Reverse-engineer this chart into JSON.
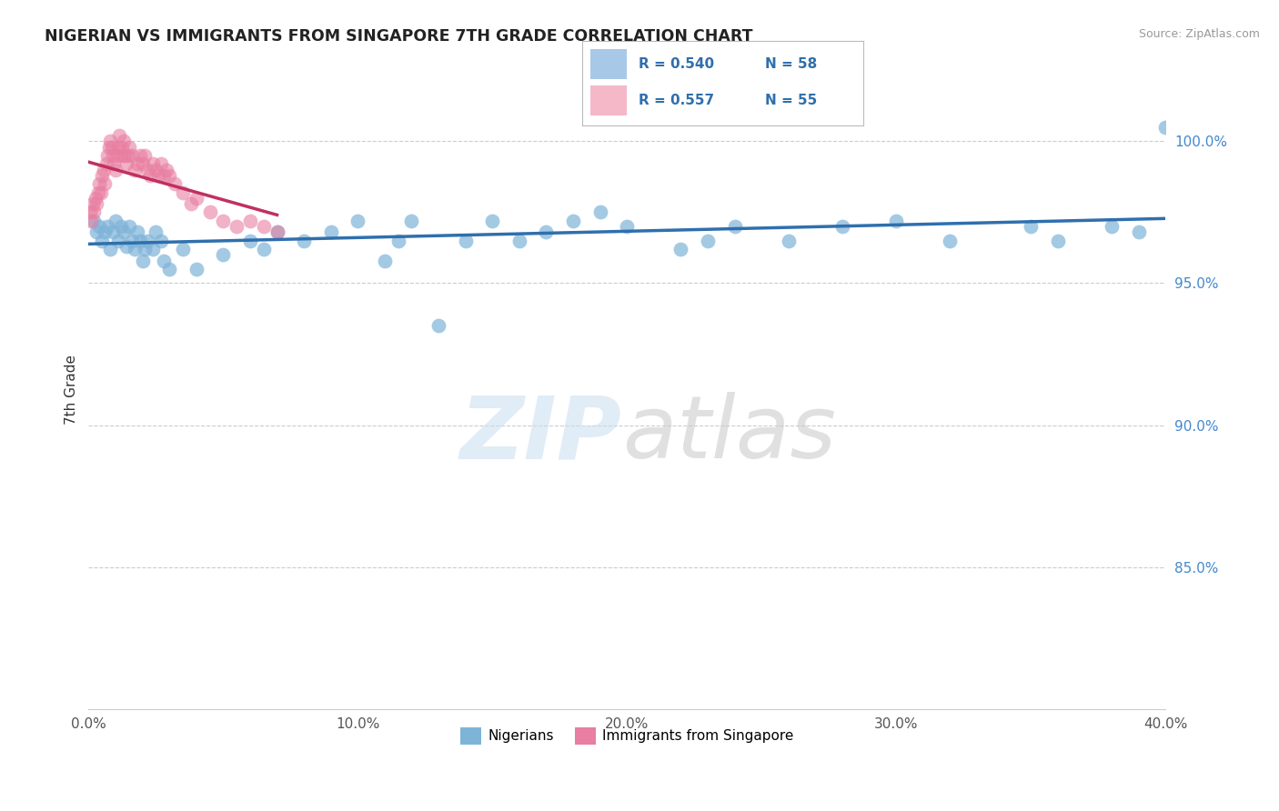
{
  "title": "NIGERIAN VS IMMIGRANTS FROM SINGAPORE 7TH GRADE CORRELATION CHART",
  "source": "Source: ZipAtlas.com",
  "xlabel_vals": [
    0.0,
    10.0,
    20.0,
    30.0,
    40.0
  ],
  "ylabel_vals": [
    100.0,
    95.0,
    90.0,
    85.0
  ],
  "xmin": 0.0,
  "xmax": 40.0,
  "ymin": 80.0,
  "ymax": 102.5,
  "R_blue": 0.54,
  "N_blue": 58,
  "R_pink": 0.557,
  "N_pink": 55,
  "blue_color": "#7EB3D8",
  "pink_color": "#E87EA1",
  "blue_line_color": "#2F6FAD",
  "pink_line_color": "#C03060",
  "legend_box_blue": "#A8C8E8",
  "legend_box_pink": "#F4B8C8",
  "ylabel": "7th Grade",
  "blue_x": [
    0.2,
    0.3,
    0.4,
    0.5,
    0.6,
    0.7,
    0.8,
    0.9,
    1.0,
    1.1,
    1.2,
    1.3,
    1.4,
    1.5,
    1.6,
    1.7,
    1.8,
    1.9,
    2.0,
    2.1,
    2.2,
    2.4,
    2.5,
    2.7,
    2.8,
    3.0,
    3.5,
    4.0,
    5.0,
    6.0,
    6.5,
    7.0,
    8.0,
    9.0,
    10.0,
    11.0,
    11.5,
    12.0,
    13.0,
    14.0,
    15.0,
    16.0,
    17.0,
    18.0,
    19.0,
    20.0,
    22.0,
    23.0,
    24.0,
    26.0,
    28.0,
    30.0,
    32.0,
    35.0,
    36.0,
    38.0,
    39.0,
    40.0
  ],
  "blue_y": [
    97.2,
    96.8,
    97.0,
    96.5,
    96.8,
    97.0,
    96.2,
    96.8,
    97.2,
    96.5,
    97.0,
    96.8,
    96.3,
    97.0,
    96.5,
    96.2,
    96.8,
    96.5,
    95.8,
    96.2,
    96.5,
    96.2,
    96.8,
    96.5,
    95.8,
    95.5,
    96.2,
    95.5,
    96.0,
    96.5,
    96.2,
    96.8,
    96.5,
    96.8,
    97.2,
    95.8,
    96.5,
    97.2,
    93.5,
    96.5,
    97.2,
    96.5,
    96.8,
    97.2,
    97.5,
    97.0,
    96.2,
    96.5,
    97.0,
    96.5,
    97.0,
    97.2,
    96.5,
    97.0,
    96.5,
    97.0,
    96.8,
    100.5
  ],
  "pink_x": [
    0.05,
    0.1,
    0.15,
    0.2,
    0.25,
    0.3,
    0.35,
    0.4,
    0.45,
    0.5,
    0.55,
    0.6,
    0.65,
    0.7,
    0.75,
    0.8,
    0.85,
    0.9,
    0.95,
    1.0,
    1.05,
    1.1,
    1.15,
    1.2,
    1.25,
    1.3,
    1.35,
    1.4,
    1.45,
    1.5,
    1.6,
    1.7,
    1.8,
    1.9,
    2.0,
    2.1,
    2.2,
    2.3,
    2.4,
    2.5,
    2.6,
    2.7,
    2.8,
    2.9,
    3.0,
    3.2,
    3.5,
    3.8,
    4.0,
    4.5,
    5.0,
    5.5,
    6.0,
    6.5,
    7.0
  ],
  "pink_y": [
    97.5,
    97.2,
    97.8,
    97.5,
    98.0,
    97.8,
    98.2,
    98.5,
    98.2,
    98.8,
    99.0,
    98.5,
    99.2,
    99.5,
    99.8,
    100.0,
    99.8,
    99.5,
    99.2,
    99.0,
    99.5,
    99.8,
    100.2,
    99.5,
    99.8,
    100.0,
    99.5,
    99.2,
    99.5,
    99.8,
    99.5,
    99.0,
    99.2,
    99.5,
    99.2,
    99.5,
    99.0,
    98.8,
    99.2,
    99.0,
    98.8,
    99.2,
    98.8,
    99.0,
    98.8,
    98.5,
    98.2,
    97.8,
    98.0,
    97.5,
    97.2,
    97.0,
    97.2,
    97.0,
    96.8
  ]
}
